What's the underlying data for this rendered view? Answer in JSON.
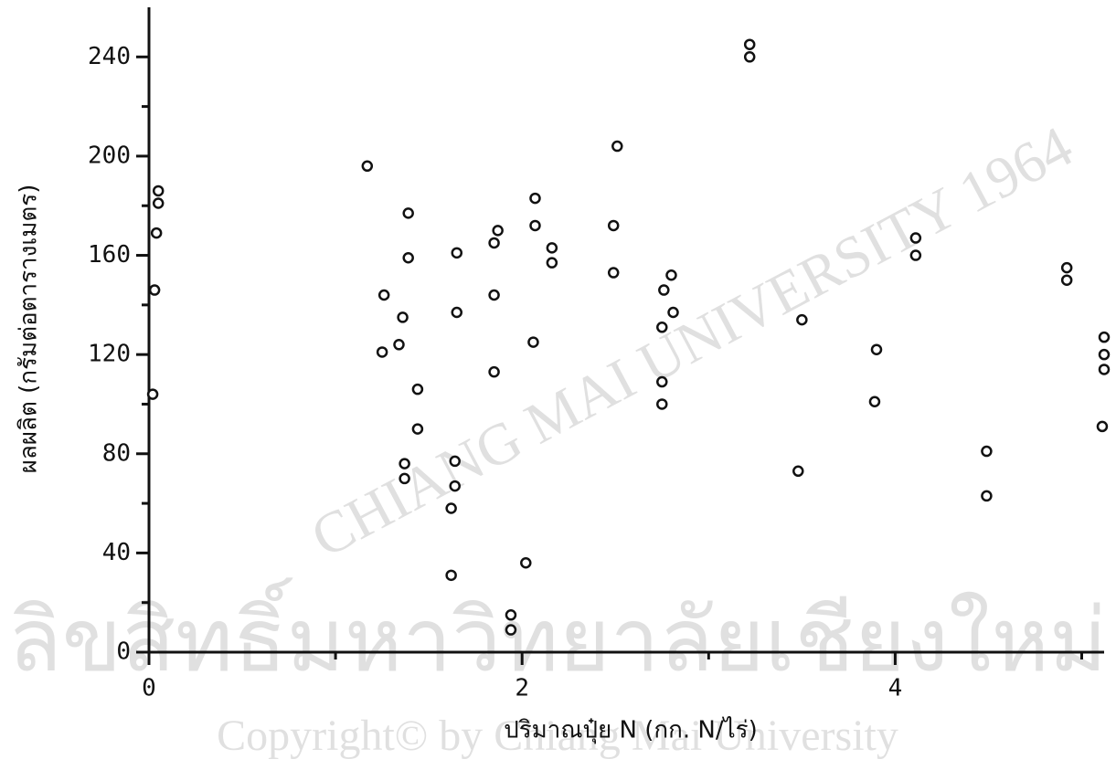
{
  "chart_data": {
    "type": "scatter",
    "x_label": "ปริมาณปุ๋ย N (กก. N/ไร่)",
    "y_label": "ผลผลิต (กรัมต่อตารางเมตร)",
    "watermark": [
      "CHIANG MAI UNIVERSITY 1964",
      "ลิขสิทธิ์มหาวิทยาลัยเชียงใหม่",
      "Copyright© by Chiang Mai University"
    ],
    "xlim": [
      0,
      5.12
    ],
    "xticks": [
      0,
      2,
      4
    ],
    "xminorticks": [
      1,
      3,
      5
    ],
    "ylim": [
      0,
      260
    ],
    "yticks": [
      0,
      40,
      80,
      120,
      160,
      200,
      240
    ],
    "yminorticks": [
      20,
      60,
      100,
      140,
      180,
      220
    ],
    "color": "#111111",
    "x": [
      0.02,
      0.03,
      0.04,
      0.05,
      0.05,
      1.17,
      1.26,
      1.25,
      1.36,
      1.34,
      1.39,
      1.39,
      1.44,
      1.44,
      1.37,
      1.37,
      1.62,
      1.62,
      1.64,
      1.64,
      1.65,
      1.65,
      1.85,
      1.85,
      1.85,
      1.87,
      2.02,
      2.06,
      2.07,
      2.07,
      1.94,
      1.94,
      2.16,
      2.16,
      2.51,
      2.49,
      2.49,
      2.76,
      2.8,
      2.75,
      2.81,
      2.75,
      2.75,
      3.22,
      3.22,
      3.5,
      3.48,
      3.9,
      3.89,
      4.11,
      4.11,
      4.49,
      4.49,
      4.92,
      4.92,
      5.12,
      5.12,
      5.12,
      5.11
    ],
    "values": [
      104,
      146,
      169,
      181,
      186,
      196,
      144,
      121,
      135,
      124,
      177,
      159,
      106,
      90,
      76,
      70,
      31,
      58,
      67,
      77,
      137,
      161,
      144,
      113,
      165,
      170,
      36,
      125,
      183,
      172,
      15,
      9,
      163,
      157,
      204,
      172,
      153,
      146,
      152,
      131,
      137,
      109,
      100,
      245,
      240,
      134,
      73,
      122,
      101,
      167,
      160,
      81,
      63,
      155,
      150,
      127,
      120,
      114,
      91
    ]
  }
}
